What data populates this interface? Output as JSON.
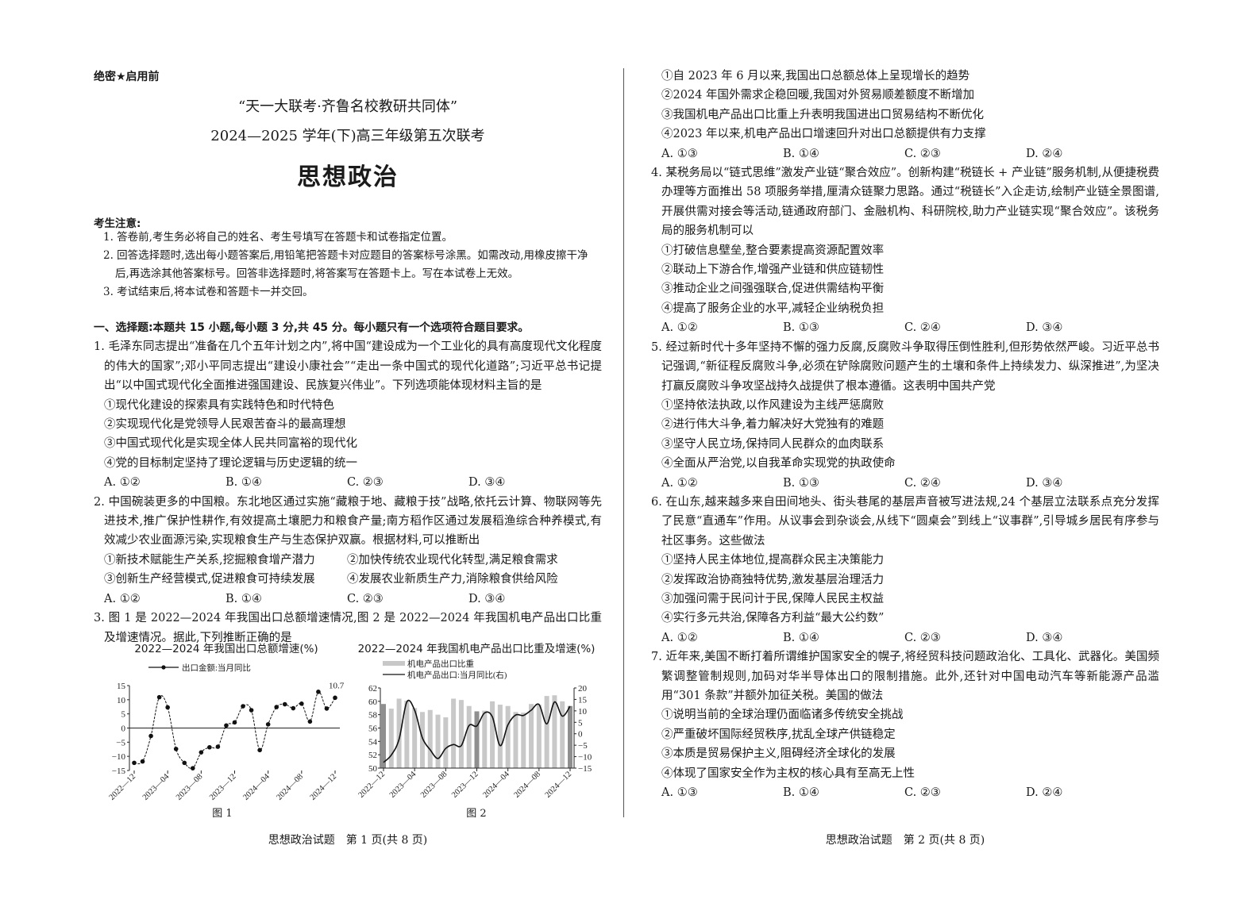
{
  "header": {
    "secret_label": "绝密★启用前",
    "title_line1": "“天一大联考·齐鲁名校教研共同体”",
    "title_line2": "2024—2025 学年(下)高三年级第五次联考",
    "subject": "思想政治"
  },
  "notice": {
    "heading": "考生注意:",
    "items": [
      "1. 答卷前,考生务必将自己的姓名、考生号填写在答题卡和试卷指定位置。",
      "2. 回答选择题时,选出每小题答案后,用铅笔把答题卡对应题目的答案标号涂黑。如需改动,用橡皮擦干净后,再选涂其他答案标号。回答非选择题时,将答案写在答题卡上。写在本试卷上无效。",
      "3. 考试结束后,将本试卷和答题卡一并交回。"
    ]
  },
  "section_heading": "一、选择题:本题共 15 小题,每小题 3 分,共 45 分。每小题只有一个选项符合题目要求。",
  "questions": [
    {
      "stem": "1. 毛泽东同志提出“准备在几个五年计划之内”,将中国“建设成为一个工业化的具有高度现代文化程度的伟大的国家”;邓小平同志提出“建设小康社会”“走出一条中国式的现代化道路”;习近平总书记提出“以中国式现代化全面推进强国建设、民族复兴伟业”。下列选项能体现材料主旨的是",
      "options": [
        "①现代化建设的探索具有实践特色和时代特色",
        "②实现现代化是党领导人民艰苦奋斗的最高理想",
        "③中国式现代化是实现全体人民共同富裕的现代化",
        "④党的目标制定坚持了理论逻辑与历史逻辑的统一"
      ],
      "choices": [
        "A. ①②",
        "B. ①④",
        "C. ②③",
        "D. ③④"
      ]
    },
    {
      "stem": "2. 中国碗装更多的中国粮。东北地区通过实施“藏粮于地、藏粮于技”战略,依托云计算、物联网等先进技术,推广保护性耕作,有效提高土壤肥力和粮食产量;南方稻作区通过发展稻渔综合种养模式,有效减少农业面源污染,实现粮食生产与生态保护双赢。根据材料,可以推断出",
      "options": [
        "①新技术赋能生产关系,挖掘粮食增产潜力",
        "②加快传统农业现代化转型,满足粮食需求",
        "③创新生产经营模式,促进粮食可持续发展",
        "④发展农业新质生产力,消除粮食供给风险"
      ],
      "choices": [
        "A. ①②",
        "B. ①④",
        "C. ②③",
        "D. ③④"
      ]
    },
    {
      "stem": "3. 图 1 是 2022—2024 年我国出口总额增速情况,图 2 是 2022—2024 年我国机电产品出口比重及增速情况。据此,下列推断正确的是",
      "options": [
        "①自 2023 年 6 月以来,我国出口总额总体上呈现增长的趋势",
        "②2024 年国外需求企稳回暖,我国对外贸易顺差额度不断增加",
        "③我国机电产品出口比重上升表明我国进出口贸易结构不断优化",
        "④2023 年以来,机电产品出口增速回升对出口总额提供有力支撑"
      ],
      "choices": [
        "A. ①③",
        "B. ①④",
        "C. ②③",
        "D. ②④"
      ]
    },
    {
      "stem": "4. 某税务局以“链式思维”激发产业链“聚合效应”。创新构建“税链长 + 产业链”服务机制,从便捷税费办理等方面推出 58 项服务举措,厘清众链聚力思路。通过“税链长”入企走访,绘制产业链全景图谱,开展供需对接会等活动,链通政府部门、金融机构、科研院校,助力产业链实现“聚合效应”。该税务局的服务机制可以",
      "options": [
        "①打破信息壁垒,整合要素提高资源配置效率",
        "②联动上下游合作,增强产业链和供应链韧性",
        "③推动企业之间强强联合,促进供需结构平衡",
        "④提高了服务企业的水平,减轻企业纳税负担"
      ],
      "choices": [
        "A. ①②",
        "B. ①③",
        "C. ②④",
        "D. ③④"
      ]
    },
    {
      "stem": "5. 经过新时代十多年坚持不懈的强力反腐,反腐败斗争取得压倒性胜利,但形势依然严峻。习近平总书记强调,“新征程反腐败斗争,必须在铲除腐败问题产生的土壤和条件上持续发力、纵深推进”,为坚决打赢反腐败斗争攻坚战持久战提供了根本遵循。这表明中国共产党",
      "options": [
        "①坚持依法执政,以作风建设为主线严惩腐败",
        "②进行伟大斗争,着力解决好大党独有的难题",
        "③坚守人民立场,保持同人民群众的血肉联系",
        "④全面从严治党,以自我革命实现党的执政使命"
      ],
      "choices": [
        "A. ①②",
        "B. ①③",
        "C. ②④",
        "D. ③④"
      ]
    },
    {
      "stem": "6. 在山东,越来越多来自田间地头、街头巷尾的基层声音被写进法规,24 个基层立法联系点充分发挥了民意“直通车”作用。从议事会到杂谈会,从线下“圆桌会”到线上“议事群”,引导城乡居民有序参与社区事务。这些做法",
      "options": [
        "①坚持人民主体地位,提高群众民主决策能力",
        "②发挥政治协商独特优势,激发基层治理活力",
        "③加强问需于民问计于民,保障人民民主权益",
        "④实行多元共治,保障各方利益“最大公约数”"
      ],
      "choices": [
        "A. ①②",
        "B. ①④",
        "C. ②③",
        "D. ③④"
      ]
    },
    {
      "stem": "7. 近年来,美国不断打着所谓维护国家安全的幌子,将经贸科技问题政治化、工具化、武器化。美国频繁调整管制规则,加码对华半导体出口的限制措施。此外,还针对中国电动汽车等新能源产品滥用“301 条款”并额外加征关税。美国的做法",
      "options": [
        "①说明当前的全球治理仍面临诸多传统安全挑战",
        "②严重破坏国际经贸秩序,扰乱全球产供链稳定",
        "③本质是贸易保护主义,阻碍经济全球化的发展",
        "④体现了国家安全作为主权的核心具有至高无上性"
      ],
      "choices": [
        "A. ①③",
        "B. ①④",
        "C. ②③",
        "D. ②④"
      ]
    }
  ],
  "chart_data": [
    {
      "type": "line",
      "title": "2022—2024 年我国出口总额增速(%)",
      "caption": "图 1",
      "legend": "出口金额:当月同比",
      "legend_position": "top-left",
      "x": [
        "2022-12",
        "2023-01",
        "2023-02",
        "2023-03",
        "2023-04",
        "2023-05",
        "2023-06",
        "2023-07",
        "2023-08",
        "2023-09",
        "2023-10",
        "2023-11",
        "2023-12",
        "2024-01",
        "2024-02",
        "2024-03",
        "2024-04",
        "2024-05",
        "2024-06",
        "2024-07",
        "2024-08",
        "2024-09",
        "2024-10",
        "2024-11",
        "2024-12"
      ],
      "xticks": [
        "2022—12",
        "2023—04",
        "2023—08",
        "2023—12",
        "2024—04",
        "2024—08",
        "2024—12"
      ],
      "series": [
        {
          "name": "出口金额:当月同比",
          "values": [
            -12.3,
            -11.8,
            -2.8,
            10.9,
            7.3,
            -7.4,
            -12.3,
            -14.2,
            -8.6,
            -6.8,
            -6.6,
            0.9,
            2.0,
            7.7,
            6.3,
            -7.8,
            1.3,
            7.4,
            8.4,
            7.0,
            8.6,
            2.3,
            12.8,
            6.9,
            10.7
          ]
        }
      ],
      "annotation": "10.7",
      "ylim": [
        -15,
        15
      ],
      "yticks": [
        "15",
        "10",
        "5",
        "0",
        "-5",
        "-10",
        "-15"
      ],
      "grid": false,
      "line_color": "#111111"
    },
    {
      "type": "bar+line",
      "title": "2022—2024 年我国机电产品出口比重及增速(%)",
      "caption": "图 2",
      "legend_position": "top-left",
      "x": [
        "2022-12",
        "2023-01",
        "2023-02",
        "2023-03",
        "2023-04",
        "2023-05",
        "2023-06",
        "2023-07",
        "2023-08",
        "2023-09",
        "2023-10",
        "2023-11",
        "2023-12",
        "2024-01",
        "2024-02",
        "2024-03",
        "2024-04",
        "2024-05",
        "2024-06",
        "2024-07",
        "2024-08",
        "2024-09",
        "2024-10",
        "2024-11",
        "2024-12"
      ],
      "xticks": [
        "2022—12",
        "2023—04",
        "2023—08",
        "2023—12",
        "2024—04",
        "2024—08",
        "2024—12"
      ],
      "series": [
        {
          "name": "机电产品出口比重",
          "axis": "left",
          "values": [
            59.6,
            58.9,
            60.4,
            60.1,
            59.0,
            58.4,
            58.7,
            58.0,
            57.6,
            60.4,
            60.2,
            59.3,
            58.5,
            58.6,
            60.0,
            59.5,
            59.3,
            58.4,
            58.3,
            59.6,
            59.5,
            60.8,
            60.9,
            60.0,
            59.3
          ]
        },
        {
          "name": "机电产品出口:当月同比(右)",
          "axis": "right",
          "values": [
            -12.5,
            -9.3,
            -2.4,
            13.9,
            10.3,
            -1.8,
            -7.0,
            -10.8,
            -6.4,
            -4.7,
            -5.2,
            3.6,
            3.4,
            9.1,
            7.4,
            -5.2,
            3.9,
            8.2,
            8.0,
            10.3,
            12.8,
            4.3,
            13.9,
            7.7,
            12.0
          ]
        }
      ],
      "ylim_left": [
        50,
        62
      ],
      "yticks_left": [
        "62",
        "60",
        "58",
        "56",
        "54",
        "52",
        "50"
      ],
      "ylim_right": [
        -15,
        20
      ],
      "yticks_right": [
        "20",
        "15",
        "10",
        "5",
        "0",
        "-5",
        "-10",
        "-15"
      ],
      "grid": false,
      "bar_color": "#c8c8c8",
      "bar_highlight_color": "#8f8f8f",
      "line_color": "#111111"
    }
  ],
  "footer": {
    "left": "思想政治试题　第 1 页(共 8 页)",
    "right": "思想政治试题　第 2 页(共 8 页)"
  }
}
